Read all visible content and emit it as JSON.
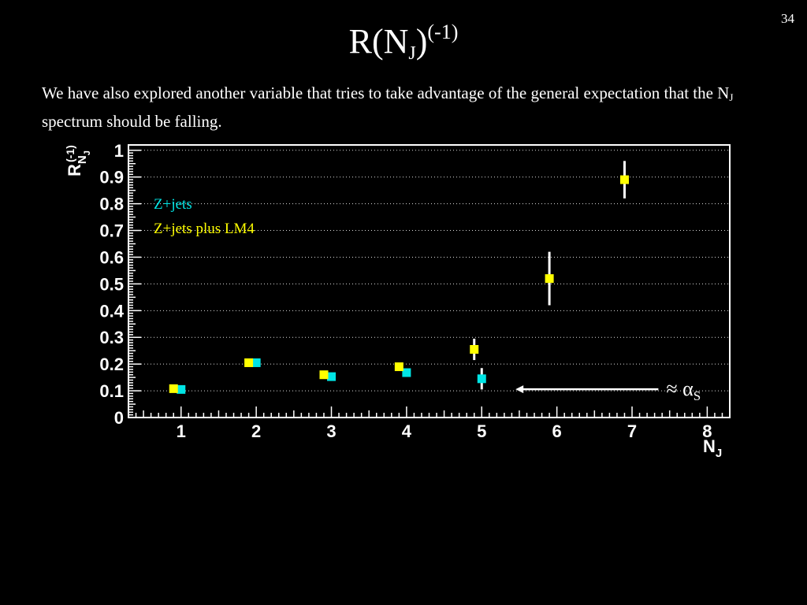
{
  "slide": {
    "number": "34",
    "title": {
      "base": "R(N",
      "sub": "J",
      "close": ")",
      "sup": "(-1)"
    },
    "intro": {
      "part1": "We have also explored another variable that tries to take advantage of the general expectation that the N",
      "sub": "J",
      "part2": " spectrum should be falling."
    }
  },
  "chart_data": {
    "type": "scatter",
    "xlabel": {
      "base": "N",
      "sub": "J"
    },
    "ylabel": {
      "base": "R",
      "sub": "N",
      "subsub": "J",
      "sup": "(-1)"
    },
    "xlim": [
      0.3,
      8.3
    ],
    "ylim": [
      0,
      1.02
    ],
    "x_ticks": [
      1,
      2,
      3,
      4,
      5,
      6,
      7,
      8
    ],
    "y_ticks": [
      0,
      0.1,
      0.2,
      0.3,
      0.4,
      0.5,
      0.6,
      0.7,
      0.8,
      0.9,
      1
    ],
    "y_tick_labels": [
      "0",
      "0.1",
      "0.2",
      "0.3",
      "0.4",
      "0.5",
      "0.6",
      "0.7",
      "0.8",
      "0.9",
      "1"
    ],
    "grid": "horizontal-dotted",
    "legend_placement": "top-left",
    "series": [
      {
        "name": "Z+jets",
        "color": "#00e5e5",
        "points": [
          {
            "x": 1.0,
            "y": 0.105,
            "err": 0.0
          },
          {
            "x": 2.0,
            "y": 0.205,
            "err": 0.0
          },
          {
            "x": 3.0,
            "y": 0.153,
            "err": 0.0
          },
          {
            "x": 4.0,
            "y": 0.168,
            "err": 0.0
          },
          {
            "x": 5.0,
            "y": 0.145,
            "err": 0.04
          }
        ]
      },
      {
        "name": "Z+jets plus LM4",
        "color": "#ffff00",
        "points": [
          {
            "x": 0.9,
            "y": 0.108,
            "err": 0.0
          },
          {
            "x": 1.9,
            "y": 0.205,
            "err": 0.0
          },
          {
            "x": 2.9,
            "y": 0.16,
            "err": 0.0
          },
          {
            "x": 3.9,
            "y": 0.19,
            "err": 0.0
          },
          {
            "x": 4.9,
            "y": 0.255,
            "err": 0.04
          },
          {
            "x": 5.9,
            "y": 0.52,
            "err": 0.1
          },
          {
            "x": 6.9,
            "y": 0.89,
            "err": 0.07
          }
        ]
      }
    ],
    "annotation": {
      "text": "≈ α",
      "sub": "S",
      "arrow_from_x": 7.35,
      "arrow_to_x": 5.45,
      "arrow_y": 0.1
    }
  }
}
